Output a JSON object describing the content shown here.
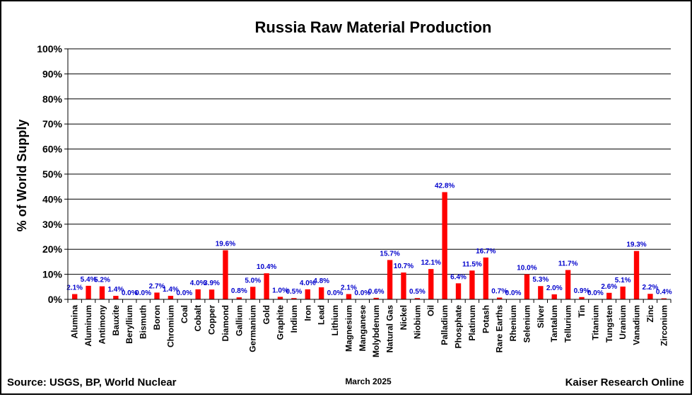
{
  "chart_data": {
    "type": "bar",
    "title": "Russia Raw Material Production",
    "ylabel": "% of World Supply",
    "xlabel": "",
    "ylim": [
      0,
      100
    ],
    "yticks": [
      "0%",
      "10%",
      "20%",
      "30%",
      "40%",
      "50%",
      "60%",
      "70%",
      "80%",
      "90%",
      "100%"
    ],
    "grid": true,
    "categories": [
      "Alumina",
      "Aluminum",
      "Antimony",
      "Bauxite",
      "Beryllium",
      "Bismuth",
      "Boron",
      "Chromium",
      "Coal",
      "Cobalt",
      "Copper",
      "Diamond",
      "Gallium",
      "Germanium",
      "Gold",
      "Graphite",
      "Indium",
      "Iron",
      "Lead",
      "Lithium",
      "Magnesium",
      "Manganese",
      "Molybdenum",
      "Natural Gas",
      "Nickel",
      "Niobium",
      "Oil",
      "Palladium",
      "Phosphate",
      "Platinum",
      "Potash",
      "Rare Earths",
      "Rhenium",
      "Selenium",
      "Silver",
      "Tantalum",
      "Tellurium",
      "Tin",
      "Titanium",
      "Tungsten",
      "Uranium",
      "Vanadium",
      "Zinc",
      "Zirconium"
    ],
    "values": [
      2.1,
      5.4,
      5.2,
      1.4,
      0.0,
      0.0,
      2.7,
      1.4,
      0.0,
      4.0,
      3.9,
      19.6,
      0.8,
      5.0,
      10.4,
      1.0,
      0.5,
      4.0,
      4.8,
      0.0,
      2.1,
      0.0,
      0.6,
      15.7,
      10.7,
      0.5,
      12.1,
      42.8,
      6.4,
      11.5,
      16.7,
      0.7,
      0.0,
      10.0,
      5.3,
      2.0,
      11.7,
      0.9,
      0.0,
      2.6,
      5.1,
      19.3,
      2.2,
      0.4
    ],
    "data_labels": [
      "2.1%",
      "5.4%",
      "5.2%",
      "1.4%",
      "0.0%",
      "0.0%",
      "2.7%",
      "1.4%",
      "0.0%",
      "4.0%",
      "3.9%",
      "19.6%",
      "0.8%",
      "5.0%",
      "10.4%",
      "1.0%",
      "0.5%",
      "4.0%",
      "4.8%",
      "0.0%",
      "2.1%",
      "0.0%",
      "0.6%",
      "15.7%",
      "10.7%",
      "0.5%",
      "12.1%",
      "42.8%",
      "6.4%",
      "11.5%",
      "16.7%",
      "0.7%",
      "0.0%",
      "10.0%",
      "5.3%",
      "2.0%",
      "11.7%",
      "0.9%",
      "0.0%",
      "2.6%",
      "5.1%",
      "19.3%",
      "2.2%",
      "0.4%"
    ],
    "colors": {
      "bar": "#ff0000",
      "label": "#0000cc",
      "grid": "#000000",
      "background": "#ffffff"
    }
  },
  "footer": {
    "source": "Source: USGS, BP, World Nuclear",
    "date": "March 2025",
    "credit": "Kaiser Research Online"
  }
}
